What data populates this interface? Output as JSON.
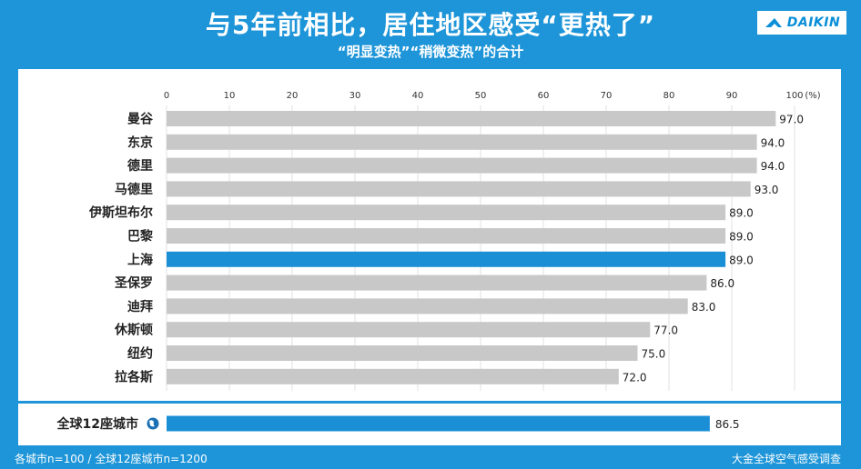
{
  "header": {
    "title": "与5年前相比，居住地区感受“更热了”",
    "subtitle": "“明显变热”“稍微变热”的合计",
    "brand": "DAIKIN"
  },
  "footer": {
    "note": "各城市n=100 / 全球12座城市n=1200",
    "source": "大金全球空气感受调查"
  },
  "colors": {
    "background": "#1e95d8",
    "bar_default": "#c8c8c8",
    "bar_highlight": "#1a8fd6",
    "text": "#222222"
  },
  "chart_data": {
    "type": "bar",
    "orientation": "horizontal",
    "unit_label": "(%)",
    "xlim": [
      0,
      100
    ],
    "ticks": [
      0,
      10,
      20,
      30,
      40,
      50,
      60,
      70,
      80,
      90,
      100
    ],
    "grid": true,
    "categories": [
      "曼谷",
      "东京",
      "德里",
      "马德里",
      "伊斯坦布尔",
      "巴黎",
      "上海",
      "圣保罗",
      "迪拜",
      "休斯顿",
      "纽约",
      "拉各斯"
    ],
    "values": [
      97.0,
      94.0,
      94.0,
      93.0,
      89.0,
      89.0,
      89.0,
      86.0,
      83.0,
      77.0,
      75.0,
      72.0
    ],
    "value_labels": [
      "97.0",
      "94.0",
      "94.0",
      "93.0",
      "89.0",
      "89.0",
      "89.0",
      "86.0",
      "83.0",
      "77.0",
      "75.0",
      "72.0"
    ],
    "highlight": "上海",
    "total": {
      "category": "全球12座城市",
      "value": 86.5,
      "value_label": "86.5",
      "icon": "globe-icon"
    }
  }
}
